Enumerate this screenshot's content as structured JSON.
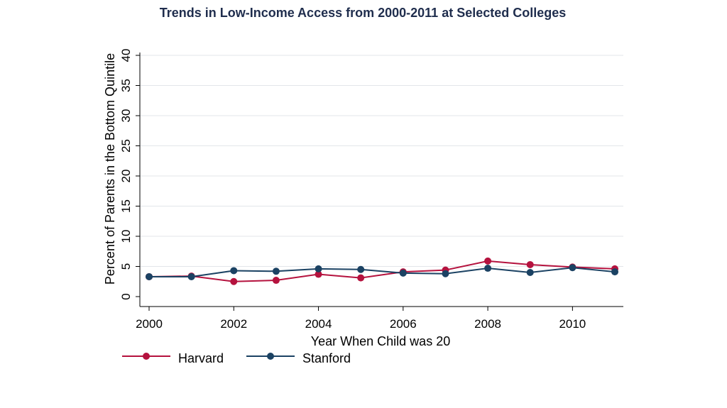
{
  "chart_data": {
    "type": "line",
    "title": "Trends in Low-Income Access from 2000-2011 at Selected Colleges",
    "xlabel": "Year When Child was 20",
    "ylabel": "Percent of Parents in the Bottom Quintile",
    "x": [
      2000,
      2001,
      2002,
      2003,
      2004,
      2005,
      2006,
      2007,
      2008,
      2009,
      2010,
      2011
    ],
    "x_ticks": [
      2000,
      2002,
      2004,
      2006,
      2008,
      2010
    ],
    "y_ticks": [
      0,
      5,
      10,
      15,
      20,
      25,
      30,
      35,
      40
    ],
    "xlim": [
      2000,
      2011
    ],
    "ylim": [
      0,
      40
    ],
    "grid": "horizontal",
    "legend_position": "bottom-left",
    "series": [
      {
        "name": "Harvard",
        "color": "#b5123e",
        "values": [
          3.3,
          3.4,
          2.5,
          2.7,
          3.7,
          3.1,
          4.1,
          4.4,
          5.9,
          5.3,
          4.9,
          4.6
        ]
      },
      {
        "name": "Stanford",
        "color": "#1b4263",
        "values": [
          3.3,
          3.3,
          4.3,
          4.2,
          4.6,
          4.5,
          3.9,
          3.8,
          4.7,
          4.0,
          4.8,
          4.1
        ]
      }
    ]
  }
}
